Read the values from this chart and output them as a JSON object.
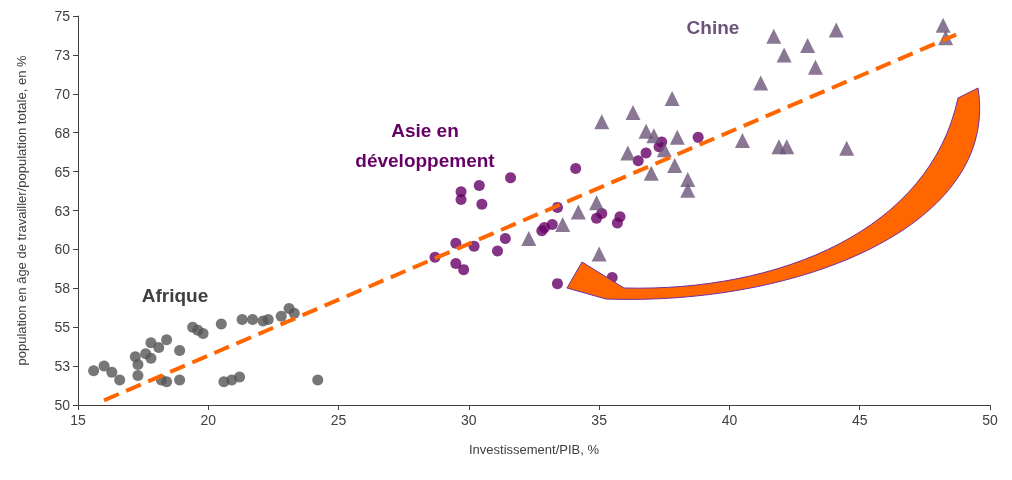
{
  "chart_data": {
    "type": "scatter",
    "xlabel": "Investissement/PIB, %",
    "ylabel": "population en âge de travailler/population totale, en %",
    "xlim": [
      15,
      50
    ],
    "xticks": [
      15,
      20,
      25,
      30,
      35,
      40,
      45,
      50
    ],
    "ylim": [
      50,
      75
    ],
    "yticks": [
      50,
      {
        "value": 52.5,
        "label": "53"
      },
      55,
      {
        "value": 57.5,
        "label": "58"
      },
      60,
      {
        "value": 62.5,
        "label": "63"
      },
      65,
      {
        "value": 67.5,
        "label": "68"
      },
      70,
      {
        "value": 72.5,
        "label": "73"
      },
      75
    ],
    "grid": false,
    "annotations": [
      "Afrique",
      "Asie en\ndéveloppement",
      "Chine"
    ],
    "series": [
      {
        "color": "#555555",
        "marker": "circle",
        "x": [
          15.6,
          16.0,
          16.3,
          16.6,
          17.2,
          17.3,
          17.6,
          17.8,
          17.8,
          18.1,
          18.4,
          18.9,
          17.3,
          18.2,
          18.4,
          18.9,
          19.4,
          19.6,
          19.8,
          20.5,
          21.3,
          21.7,
          22.1,
          22.3,
          22.8,
          23.1,
          23.3,
          20.6,
          20.9,
          21.2,
          24.2
        ],
        "values": [
          52.2,
          52.5,
          52.1,
          51.6,
          53.1,
          52.6,
          53.3,
          53.0,
          54.0,
          53.7,
          54.2,
          53.5,
          51.9,
          51.6,
          51.5,
          51.6,
          55.0,
          54.8,
          54.6,
          55.2,
          55.5,
          55.5,
          55.4,
          55.5,
          55.7,
          56.2,
          55.9,
          51.5,
          51.6,
          51.8,
          51.6
        ]
      },
      {
        "color": "#660066",
        "marker": "circle",
        "x": [
          29.7,
          29.7,
          30.4,
          30.5,
          31.6,
          34.1,
          29.5,
          30.2,
          31.4,
          31.1,
          28.7,
          29.5,
          29.8,
          32.8,
          32.9,
          33.2,
          33.4,
          35.1,
          34.9,
          35.8,
          35.7,
          35.5,
          33.4,
          38.8,
          36.8,
          36.5,
          37.4,
          37.3
        ],
        "values": [
          63.7,
          63.2,
          64.1,
          62.9,
          64.6,
          65.2,
          60.4,
          60.2,
          60.7,
          59.9,
          59.5,
          59.1,
          58.7,
          61.2,
          61.4,
          61.6,
          62.7,
          62.3,
          62.0,
          62.1,
          61.7,
          58.2,
          57.8,
          67.2,
          66.2,
          65.7,
          66.9,
          66.6
        ]
      },
      {
        "color": "#6b5578",
        "marker": "triangle",
        "x": [
          41.7,
          44.1,
          42.1,
          43.0,
          43.3,
          41.2,
          37.8,
          36.3,
          35.1,
          36.8,
          37.1,
          38.0,
          40.5,
          41.9,
          42.2,
          44.5,
          36.1,
          37.5,
          37.0,
          37.9,
          38.4,
          38.4,
          34.9,
          34.2,
          33.6,
          32.3,
          35.0,
          48.2,
          48.3
        ],
        "values": [
          73.7,
          74.1,
          72.5,
          73.1,
          71.7,
          70.7,
          69.7,
          68.8,
          68.2,
          67.6,
          67.3,
          67.2,
          67.0,
          66.6,
          66.6,
          66.5,
          66.2,
          66.4,
          64.9,
          65.4,
          64.5,
          63.8,
          63.0,
          62.4,
          61.6,
          60.7,
          59.7,
          74.4,
          73.6
        ]
      },
      {
        "type": "line",
        "color": "#ff6600",
        "line_style": "dashed",
        "marker": "none",
        "x": [
          16,
          48.7
        ],
        "values": [
          50.3,
          73.8
        ]
      }
    ]
  }
}
